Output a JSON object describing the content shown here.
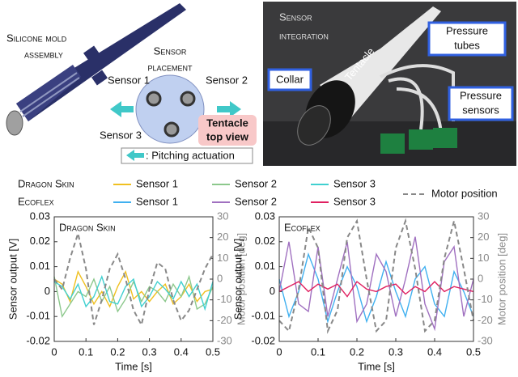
{
  "figure": {
    "mold_label": [
      "Silicone mold",
      "assembly"
    ],
    "placement_title": [
      "Sensor",
      "placement"
    ],
    "sensors": [
      "Sensor 1",
      "Sensor 2",
      "Sensor 3"
    ],
    "top_view": [
      "Tentacle",
      "top view"
    ],
    "actuation_legend": ": Pitching actuation",
    "integration_title": [
      "Sensor",
      "integration"
    ],
    "collar": "Collar",
    "tentacle": "Tentacle",
    "tubes": [
      "Pressure",
      "tubes"
    ],
    "pressure_sensors": [
      "Pressure",
      "sensors"
    ]
  },
  "chart_data": [
    {
      "type": "line",
      "title": "Dragon Skin",
      "xlabel": "Time [s]",
      "ylabel": "Sensor output [V]",
      "y2label": "Motor position [deg]",
      "x": [
        0,
        0.025,
        0.05,
        0.075,
        0.1,
        0.125,
        0.15,
        0.175,
        0.2,
        0.225,
        0.25,
        0.275,
        0.3,
        0.325,
        0.35,
        0.375,
        0.4,
        0.425,
        0.45,
        0.475,
        0.5
      ],
      "xlim": [
        0,
        0.5
      ],
      "xticks": [
        0,
        0.1,
        0.2,
        0.3,
        0.4,
        0.5
      ],
      "ylim": [
        -0.02,
        0.03
      ],
      "yticks": [
        -0.02,
        -0.01,
        0,
        0.01,
        0.02,
        0.03
      ],
      "y2lim": [
        -30,
        30
      ],
      "y2ticks": [
        -30,
        -20,
        -10,
        0,
        10,
        20,
        30
      ],
      "series": [
        {
          "name": "Sensor 1",
          "color": "#f0c020",
          "values": [
            0.005,
            0.003,
            -0.004,
            0.008,
            0.002,
            -0.005,
            0.0,
            -0.006,
            0.002,
            0.008,
            -0.003,
            0.0,
            -0.004,
            0.0,
            0.003,
            -0.005,
            -0.002,
            0.003,
            -0.004,
            0.0,
            0.001
          ]
        },
        {
          "name": "Sensor 2",
          "color": "#8cc88c",
          "values": [
            0.006,
            -0.01,
            -0.005,
            0.0,
            -0.002,
            0.005,
            -0.004,
            0.002,
            -0.008,
            -0.003,
            0.004,
            -0.004,
            0.002,
            0.0,
            -0.004,
            0.003,
            -0.002,
            0.006,
            -0.007,
            -0.005,
            0.002
          ]
        },
        {
          "name": "Sensor 3",
          "color": "#40d0d0",
          "values": [
            0.004,
            0.002,
            -0.003,
            0.003,
            -0.006,
            -0.002,
            0.006,
            -0.004,
            -0.005,
            0.002,
            0.005,
            -0.006,
            -0.002,
            0.004,
            0.001,
            -0.003,
            0.004,
            -0.002,
            0.003,
            -0.007,
            0.004
          ]
        },
        {
          "name": "Motor position",
          "color": "#888888",
          "axis": "y2",
          "values": [
            0,
            -5,
            10,
            22,
            5,
            -22,
            -10,
            5,
            12,
            0,
            -15,
            -22,
            -5,
            8,
            5,
            -10,
            -20,
            -15,
            -5,
            5,
            12
          ]
        }
      ]
    },
    {
      "type": "line",
      "title": "Ecoflex",
      "xlabel": "Time [s]",
      "ylabel": "Sensor output [V]",
      "y2label": "Motor position [deg]",
      "x": [
        0,
        0.025,
        0.05,
        0.075,
        0.1,
        0.125,
        0.15,
        0.175,
        0.2,
        0.225,
        0.25,
        0.275,
        0.3,
        0.325,
        0.35,
        0.375,
        0.4,
        0.425,
        0.45,
        0.475,
        0.5
      ],
      "xlim": [
        0,
        0.5
      ],
      "xticks": [
        0,
        0.1,
        0.2,
        0.3,
        0.4,
        0.5
      ],
      "ylim": [
        -0.02,
        0.03
      ],
      "yticks": [
        -0.02,
        -0.01,
        0,
        0.01,
        0.02,
        0.03
      ],
      "y2lim": [
        -30,
        30
      ],
      "y2ticks": [
        -30,
        -20,
        -10,
        0,
        10,
        20,
        30
      ],
      "series": [
        {
          "name": "Sensor 1",
          "color": "#40b0f0",
          "values": [
            0.005,
            -0.01,
            0.0,
            0.015,
            0.005,
            -0.012,
            0.0,
            0.01,
            0.002,
            -0.012,
            -0.002,
            0.012,
            0.0,
            -0.01,
            0.005,
            0.01,
            -0.005,
            -0.01,
            0.008,
            0.0,
            -0.01
          ]
        },
        {
          "name": "Sensor 2",
          "color": "#a070c0",
          "values": [
            0.0,
            0.02,
            -0.005,
            -0.008,
            0.018,
            -0.01,
            0.005,
            0.02,
            -0.012,
            -0.005,
            0.015,
            0.008,
            -0.01,
            0.005,
            0.022,
            -0.005,
            -0.015,
            0.012,
            0.018,
            -0.01,
            0.005
          ]
        },
        {
          "name": "Sensor 3",
          "color": "#e02060",
          "values": [
            0.0,
            0.002,
            0.004,
            0.0,
            0.003,
            0.001,
            0.003,
            -0.002,
            0.004,
            0.001,
            0.0,
            0.002,
            0.003,
            -0.001,
            0.002,
            0.0,
            0.004,
            0.0,
            0.002,
            0.001,
            0.0
          ]
        },
        {
          "color": "#888888",
          "axis": "y2",
          "values": [
            -20,
            -25,
            -5,
            25,
            15,
            -25,
            -15,
            20,
            28,
            0,
            -25,
            -20,
            15,
            28,
            5,
            -25,
            -20,
            10,
            28,
            5,
            -20
          ]
        }
      ]
    }
  ]
}
